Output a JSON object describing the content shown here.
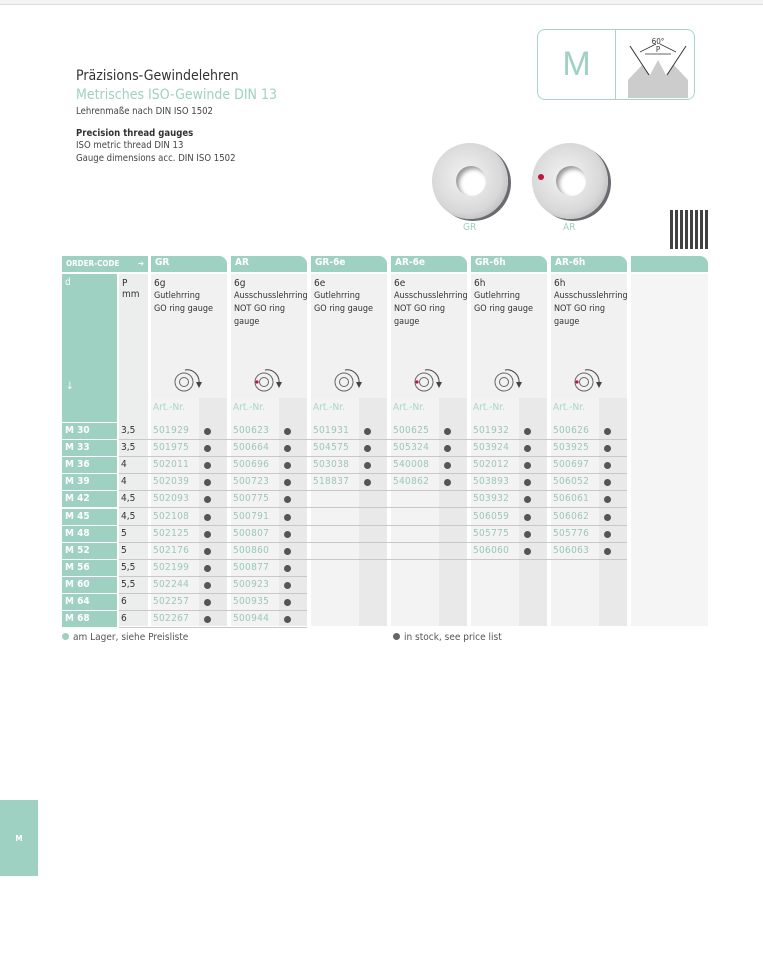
{
  "header": {
    "title": "Präzisions-Gewindelehren",
    "subtitle": "Metrisches ISO-Gewinde DIN 13",
    "subtitle2": "Lehrenmaße nach DIN ISO 1502",
    "en_title": "Precision thread gauges",
    "en_line1": "ISO metric thread DIN 13",
    "en_line2": "Gauge dimensions acc. DIN ISO 1502"
  },
  "badge": {
    "letter": "M",
    "angle": "60°",
    "pitch": "P"
  },
  "images": [
    {
      "label": "GR"
    },
    {
      "label": "AR"
    }
  ],
  "colors": {
    "accent": "#9fd1c2",
    "bullet": "#555555",
    "red_dot": "#c0143c"
  },
  "table": {
    "order_code": "ORDER-CODE",
    "arrow": "➔",
    "d_label": "d",
    "down_arrow": "↓",
    "p_label": "P",
    "p_unit": "mm",
    "columns": [
      {
        "code": "GR",
        "tol": "6g",
        "de": "Gutlehrring",
        "en": "GO ring gauge",
        "icon": "ring-go",
        "art": "Art.-Nr."
      },
      {
        "code": "AR",
        "tol": "6g",
        "de": "Ausschusslehrring",
        "en": "NOT GO ring gauge",
        "icon": "ring-notgo",
        "art": "Art.-Nr."
      },
      {
        "code": "GR-6e",
        "tol": "6e",
        "de": "Gutlehrring",
        "en": "GO ring gauge",
        "icon": "ring-go",
        "art": "Art.-Nr."
      },
      {
        "code": "AR-6e",
        "tol": "6e",
        "de": "Ausschusslehrring",
        "en": "NOT GO ring gauge",
        "icon": "ring-notgo",
        "art": "Art.-Nr."
      },
      {
        "code": "GR-6h",
        "tol": "6h",
        "de": "Gutlehrring",
        "en": "GO ring gauge",
        "icon": "ring-go",
        "art": "Art.-Nr."
      },
      {
        "code": "AR-6h",
        "tol": "6h",
        "de": "Ausschusslehrring",
        "en": "NOT GO ring gauge",
        "icon": "ring-notgo",
        "art": "Art.-Nr."
      }
    ],
    "rows": [
      {
        "d": "M 30",
        "p": "3,5",
        "nums": [
          "501929",
          "500623",
          "501931",
          "500625",
          "501932",
          "500626"
        ]
      },
      {
        "d": "M 33",
        "p": "3,5",
        "nums": [
          "501975",
          "500664",
          "504575",
          "505324",
          "503924",
          "503925"
        ]
      },
      {
        "d": "M 36",
        "p": "4",
        "nums": [
          "502011",
          "500696",
          "503038",
          "540008",
          "502012",
          "500697"
        ]
      },
      {
        "d": "M 39",
        "p": "4",
        "nums": [
          "502039",
          "500723",
          "518837",
          "540862",
          "503893",
          "506052"
        ]
      },
      {
        "d": "M 42",
        "p": "4,5",
        "nums": [
          "502093",
          "500775",
          "",
          "",
          "503932",
          "506061"
        ]
      },
      {
        "d": "M 45",
        "p": "4,5",
        "nums": [
          "502108",
          "500791",
          "",
          "",
          "506059",
          "506062"
        ]
      },
      {
        "d": "M 48",
        "p": "5",
        "nums": [
          "502125",
          "500807",
          "",
          "",
          "505775",
          "505776"
        ]
      },
      {
        "d": "M 52",
        "p": "5",
        "nums": [
          "502176",
          "500860",
          "",
          "",
          "506060",
          "506063"
        ]
      },
      {
        "d": "M 56",
        "p": "5,5",
        "nums": [
          "502199",
          "500877",
          "",
          "",
          "",
          ""
        ]
      },
      {
        "d": "M 60",
        "p": "5,5",
        "nums": [
          "502244",
          "500923",
          "",
          "",
          "",
          ""
        ]
      },
      {
        "d": "M 64",
        "p": "6",
        "nums": [
          "502257",
          "500935",
          "",
          "",
          "",
          ""
        ]
      },
      {
        "d": "M 68",
        "p": "6",
        "nums": [
          "502267",
          "500944",
          "",
          "",
          "",
          ""
        ]
      }
    ]
  },
  "footer": {
    "de": "am Lager, siehe Preisliste",
    "en": "in stock, see price list"
  },
  "side_tab": "M"
}
